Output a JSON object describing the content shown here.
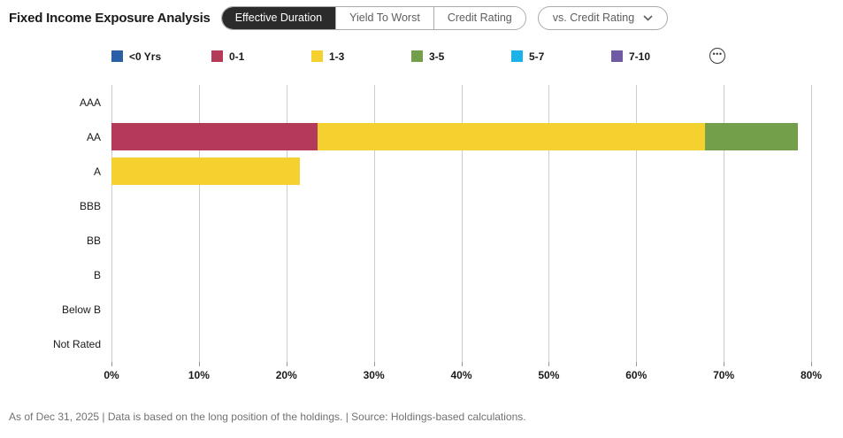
{
  "header": {
    "title": "Fixed Income Exposure Analysis",
    "tabs": [
      {
        "label": "Effective Duration",
        "active": true
      },
      {
        "label": "Yield To Worst",
        "active": false
      },
      {
        "label": "Credit Rating",
        "active": false
      }
    ],
    "compare_dropdown": {
      "label": "vs. Credit Rating",
      "icon": "chevron-down-icon"
    }
  },
  "legend": {
    "items": [
      {
        "label": "<0 Yrs",
        "color": "#2a5fa5"
      },
      {
        "label": "0-1",
        "color": "#b43a5a"
      },
      {
        "label": "1-3",
        "color": "#f5d130"
      },
      {
        "label": "3-5",
        "color": "#739e4a"
      },
      {
        "label": "5-7",
        "color": "#1db2e7"
      },
      {
        "label": "7-10",
        "color": "#6f5ba3"
      }
    ],
    "more_icon": "ellipsis-icon",
    "more_glyph": "•••"
  },
  "chart_data": {
    "type": "bar",
    "orientation": "horizontal",
    "stacked": true,
    "title": "Fixed Income Exposure Analysis - Effective Duration vs. Credit Rating",
    "xlabel": "",
    "ylabel": "",
    "categories": [
      "AAA",
      "AA",
      "A",
      "BBB",
      "BB",
      "B",
      "Below B",
      "Not Rated"
    ],
    "series": [
      {
        "name": "<0 Yrs",
        "color": "#2a5fa5",
        "values": [
          0,
          0,
          0,
          0,
          0,
          0,
          0,
          0
        ]
      },
      {
        "name": "0-1",
        "color": "#b43a5a",
        "values": [
          0,
          23.6,
          0,
          0,
          0,
          0,
          0,
          0
        ]
      },
      {
        "name": "1-3",
        "color": "#f5d130",
        "values": [
          0,
          44.3,
          21.5,
          0,
          0,
          0,
          0,
          0
        ]
      },
      {
        "name": "3-5",
        "color": "#739e4a",
        "values": [
          0,
          10.6,
          0,
          0,
          0,
          0,
          0,
          0
        ]
      },
      {
        "name": "5-7",
        "color": "#1db2e7",
        "values": [
          0,
          0,
          0,
          0,
          0,
          0,
          0,
          0
        ]
      },
      {
        "name": "7-10",
        "color": "#6f5ba3",
        "values": [
          0,
          0,
          0,
          0,
          0,
          0,
          0,
          0
        ]
      }
    ],
    "x_ticks": [
      "0%",
      "10%",
      "20%",
      "30%",
      "40%",
      "50%",
      "60%",
      "70%",
      "80%"
    ],
    "xlim": [
      0,
      80
    ],
    "grid": "vertical",
    "legend_position": "top"
  },
  "footer": {
    "text": "As of Dec 31, 2025 | Data is based on the long position of the holdings. | Source: Holdings-based calculations."
  },
  "colors": {
    "active_tab_bg": "#2b2b2b",
    "gridline": "#cccccc",
    "border": "#ababab"
  }
}
